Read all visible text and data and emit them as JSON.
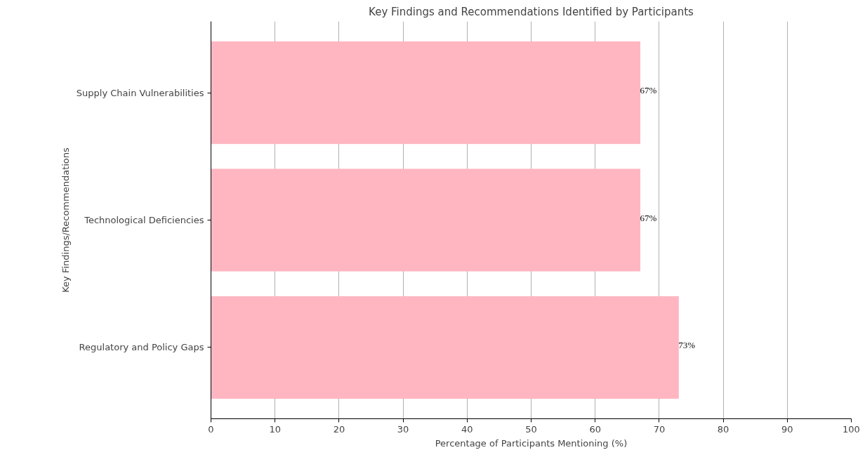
{
  "chart_data": {
    "type": "bar",
    "orientation": "horizontal",
    "title": "Key Findings and Recommendations Identified by Participants",
    "xlabel": "Percentage of Participants Mentioning (%)",
    "ylabel": "Key Findings/Recommendations",
    "categories": [
      "Supply Chain Vulnerabilities",
      "Technological Deficiencies",
      "Regulatory and Policy Gaps"
    ],
    "values": [
      67,
      67,
      73
    ],
    "color": "#ffb6c1",
    "value_labels": [
      "67%",
      "67%",
      "73%"
    ],
    "xlim": [
      0,
      100
    ],
    "xticks": [
      0,
      10,
      20,
      30,
      40,
      50,
      60,
      70,
      80,
      90,
      100
    ],
    "grid": "x"
  }
}
